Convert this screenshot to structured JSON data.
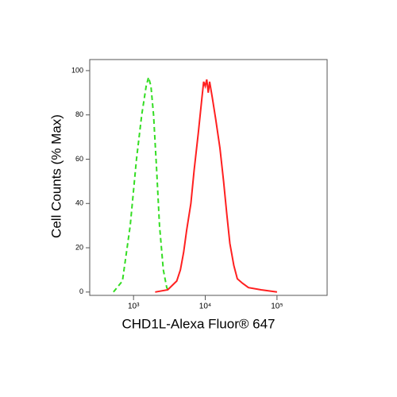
{
  "chart_data": {
    "type": "line",
    "x_label": "CHD1L-Alexa Fluor® 647",
    "y_label": "Cell Counts (% Max)",
    "xscale": "log",
    "xlim": [
      245,
      500000
    ],
    "ylim": [
      -1.5,
      105
    ],
    "xticks": [
      {
        "value": 1000,
        "label": "10³"
      },
      {
        "value": 10000,
        "label": "10⁴"
      },
      {
        "value": 100000,
        "label": "10⁵"
      }
    ],
    "yticks": [
      0,
      20,
      40,
      60,
      80,
      100
    ],
    "series": [
      {
        "color": "#33dd22",
        "dash": true,
        "x": [
          525,
          700,
          900,
          1100,
          1300,
          1500,
          1620,
          1750,
          1900,
          2100,
          2300,
          2600,
          2900,
          3200
        ],
        "values": [
          0,
          5,
          30,
          60,
          80,
          93,
          97,
          93,
          80,
          55,
          30,
          10,
          2,
          0
        ]
      },
      {
        "color": "#ff2020",
        "dash": false,
        "x": [
          2000,
          3000,
          4000,
          4500,
          5000,
          5500,
          6300,
          7000,
          8000,
          9000,
          9500,
          10000,
          10500,
          11000,
          11500,
          12500,
          14000,
          16000,
          18000,
          20000,
          22000,
          25000,
          28000,
          33000,
          40000,
          60000,
          100000
        ],
        "values": [
          0,
          1,
          5,
          10,
          18,
          28,
          40,
          55,
          72,
          88,
          95,
          93,
          96,
          90,
          95,
          88,
          78,
          65,
          50,
          35,
          22,
          12,
          6,
          4,
          2,
          1,
          0
        ]
      }
    ]
  }
}
